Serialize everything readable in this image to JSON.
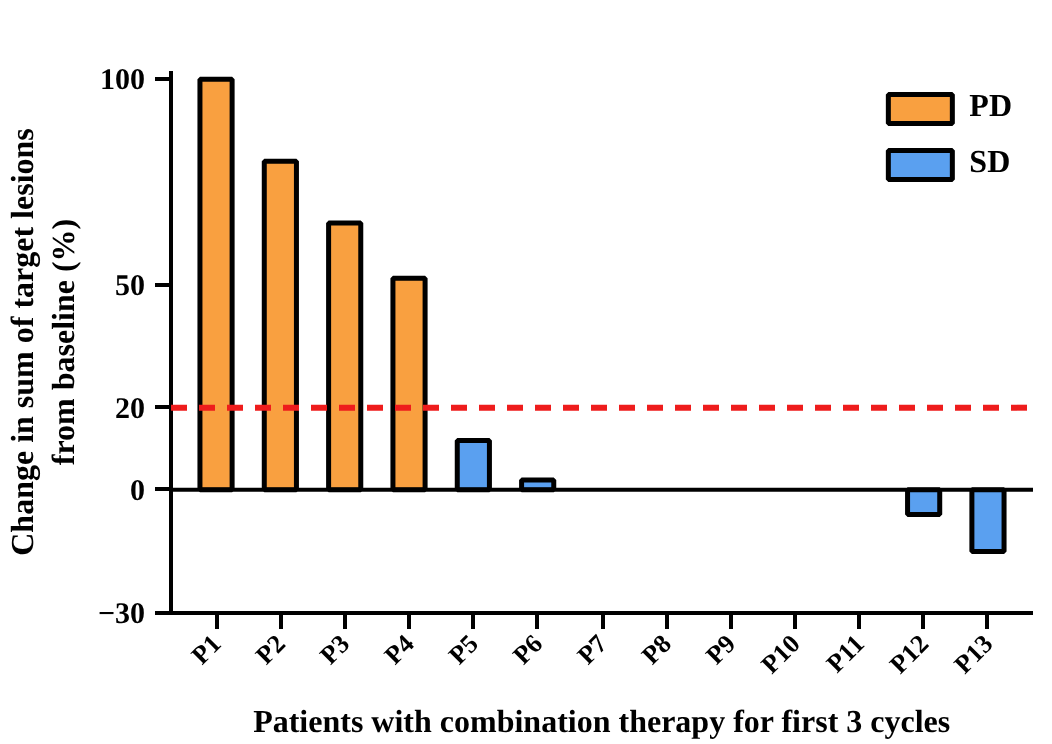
{
  "chart_data": {
    "type": "bar",
    "xlabel": "Patients with combination therapy for first 3 cycles",
    "ylabel": "Change in sum of target lesions\nfrom baseline (%)",
    "categories": [
      "P1",
      "P2",
      "P3",
      "P4",
      "P5",
      "P6",
      "P7",
      "P8",
      "P9",
      "P10",
      "P11",
      "P12",
      "P13"
    ],
    "series": [
      {
        "name": "PD",
        "color": "#f9a040",
        "values": [
          100,
          80,
          65,
          51.5,
          null,
          null,
          null,
          null,
          null,
          null,
          null,
          null,
          null
        ]
      },
      {
        "name": "SD",
        "color": "#5aa0f0",
        "values": [
          null,
          null,
          null,
          null,
          12,
          2.4,
          null,
          null,
          null,
          null,
          null,
          -6,
          -15
        ]
      }
    ],
    "ylim": [
      -30,
      102
    ],
    "yticks": [
      -30,
      0,
      20,
      50,
      100
    ],
    "ref_lines": [
      {
        "axis": "y",
        "value": 0,
        "color": "#000000",
        "line_style": "solid"
      },
      {
        "axis": "y",
        "value": 20,
        "color": "#ee1c1c",
        "line_style": "dashed"
      }
    ],
    "grid": false,
    "legend": "top right"
  }
}
